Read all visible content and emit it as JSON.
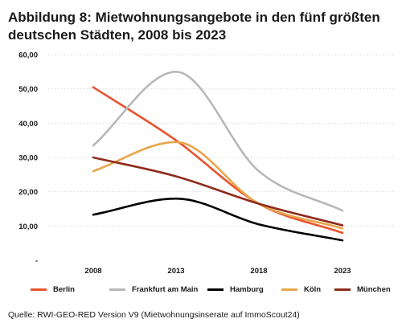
{
  "title_line1": "Abbildung 8: Mietwohnungsangebote in den fünf größten",
  "title_line2": "deutschen Städten, 2008 bis 2023",
  "source": "Quelle: RWI-GEO-RED Version V9 (Mietwohnungsinserate auf ImmoScout24)",
  "chart_data": {
    "type": "line",
    "x": [
      "2008",
      "2013",
      "2018",
      "2023"
    ],
    "ylim": [
      0,
      60
    ],
    "yticks": [
      "-",
      "10,00",
      "20,00",
      "30,00",
      "40,00",
      "50,00",
      "60,00"
    ],
    "grid": true,
    "legend_position": "bottom",
    "series": [
      {
        "name": "Berlin",
        "color": "#e8532d",
        "values": [
          50.5,
          35.0,
          16.5,
          8.0
        ]
      },
      {
        "name": "Frankfurt am Main",
        "color": "#b8b8b8",
        "values": [
          33.5,
          55.0,
          26.0,
          14.5
        ]
      },
      {
        "name": "Hamburg",
        "color": "#000000",
        "values": [
          13.3,
          18.0,
          10.5,
          5.8
        ]
      },
      {
        "name": "Köln",
        "color": "#e8a54a",
        "values": [
          26.0,
          34.5,
          16.5,
          9.3
        ]
      },
      {
        "name": "München",
        "color": "#8e2b1c",
        "values": [
          30.0,
          24.5,
          16.5,
          10.2
        ]
      }
    ]
  }
}
